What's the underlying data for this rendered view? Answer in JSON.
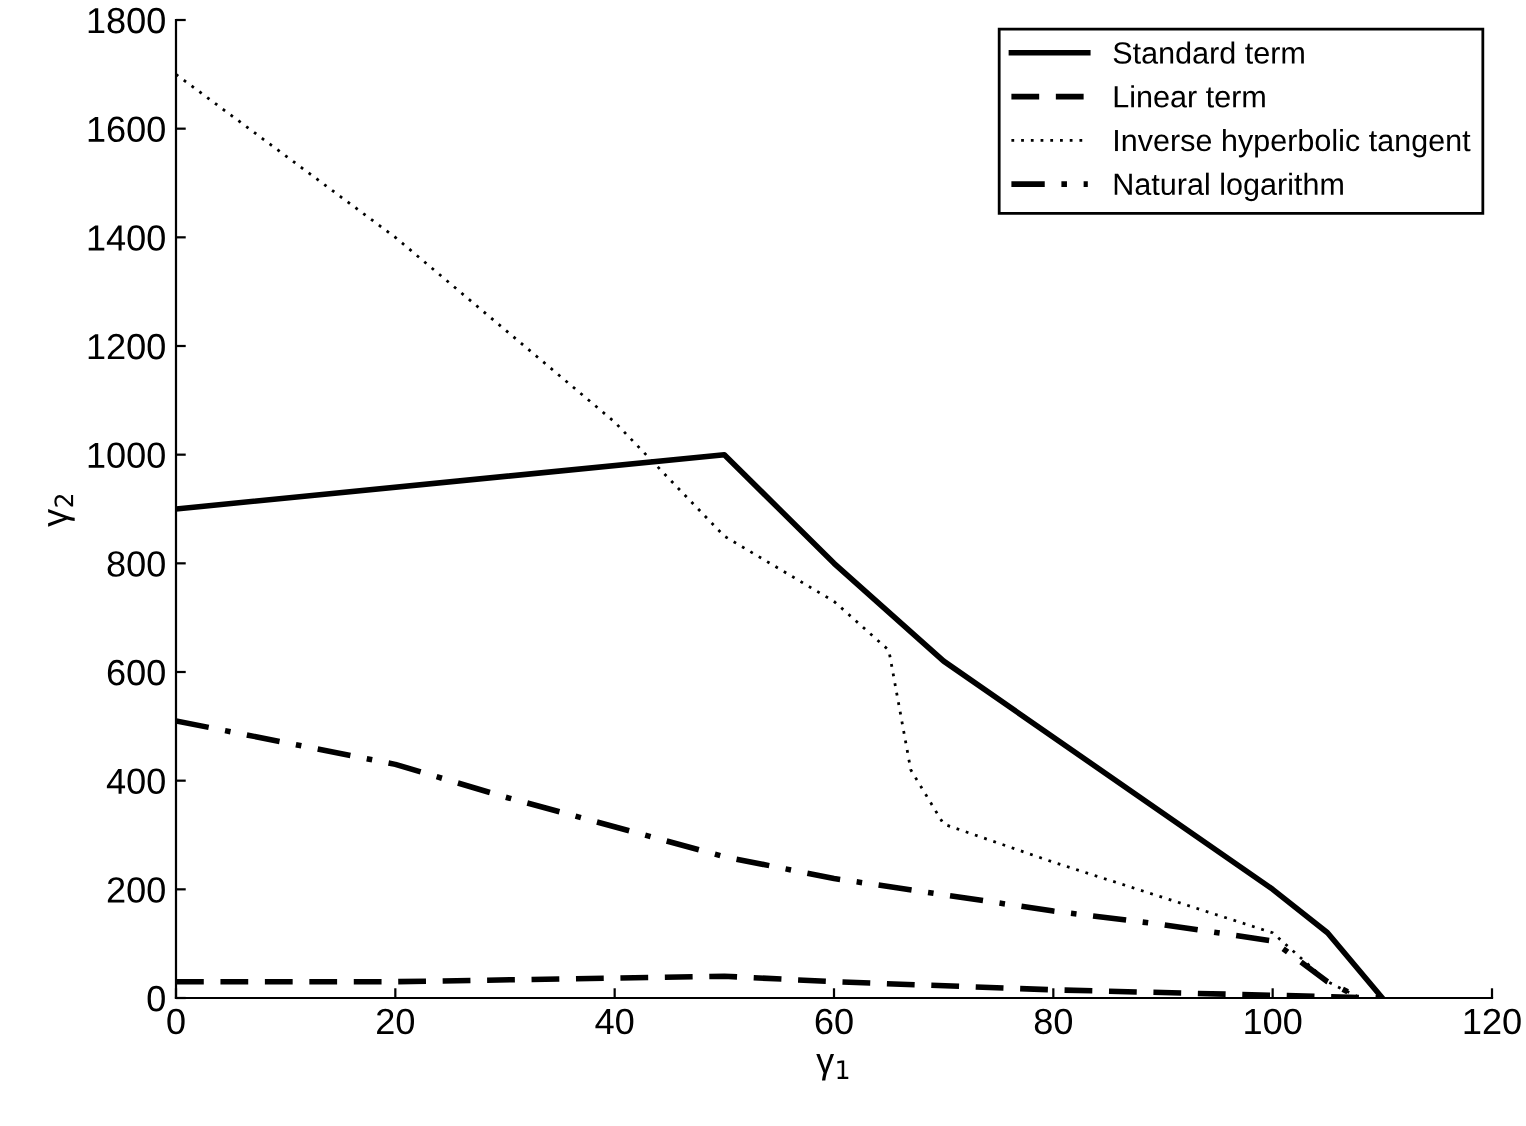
{
  "chart_data": {
    "type": "line",
    "xlabel": "γ$_{1}$",
    "ylabel": "γ$_{2}$",
    "xlim": [
      0,
      120
    ],
    "xticks": [
      0,
      20,
      40,
      60,
      80,
      100,
      120
    ],
    "ylim": [
      0,
      1800
    ],
    "yticks": [
      0,
      200,
      400,
      600,
      800,
      1000,
      1200,
      1400,
      1600,
      1800
    ],
    "grid": false,
    "legend": "top right",
    "marker": "none",
    "series": [
      {
        "name": "Standard term",
        "color": "#000000",
        "line_style": "solid",
        "x": [
          0,
          50,
          60,
          70,
          100,
          105,
          110
        ],
        "values": [
          900,
          1000,
          800,
          620,
          200,
          120,
          0
        ]
      },
      {
        "name": "Linear term",
        "color": "#000000",
        "line_style": "dashed",
        "x": [
          0,
          20,
          50,
          60,
          80,
          100,
          110
        ],
        "values": [
          30,
          30,
          40,
          30,
          15,
          5,
          0
        ]
      },
      {
        "name": "Inverse hyperbolic tangent",
        "color": "#000000",
        "line_style": "dotted",
        "x": [
          0,
          20,
          40,
          50,
          60,
          65,
          67,
          70,
          80,
          90,
          100,
          105,
          108
        ],
        "values": [
          1700,
          1400,
          1060,
          850,
          730,
          640,
          420,
          320,
          250,
          185,
          120,
          30,
          0
        ]
      },
      {
        "name": "Natural logarithm",
        "color": "#000000",
        "line_style": "dashdot",
        "x": [
          0,
          20,
          30,
          50,
          60,
          70,
          80,
          90,
          100,
          105,
          108
        ],
        "values": [
          510,
          430,
          370,
          260,
          220,
          190,
          160,
          135,
          105,
          30,
          0
        ]
      }
    ]
  }
}
